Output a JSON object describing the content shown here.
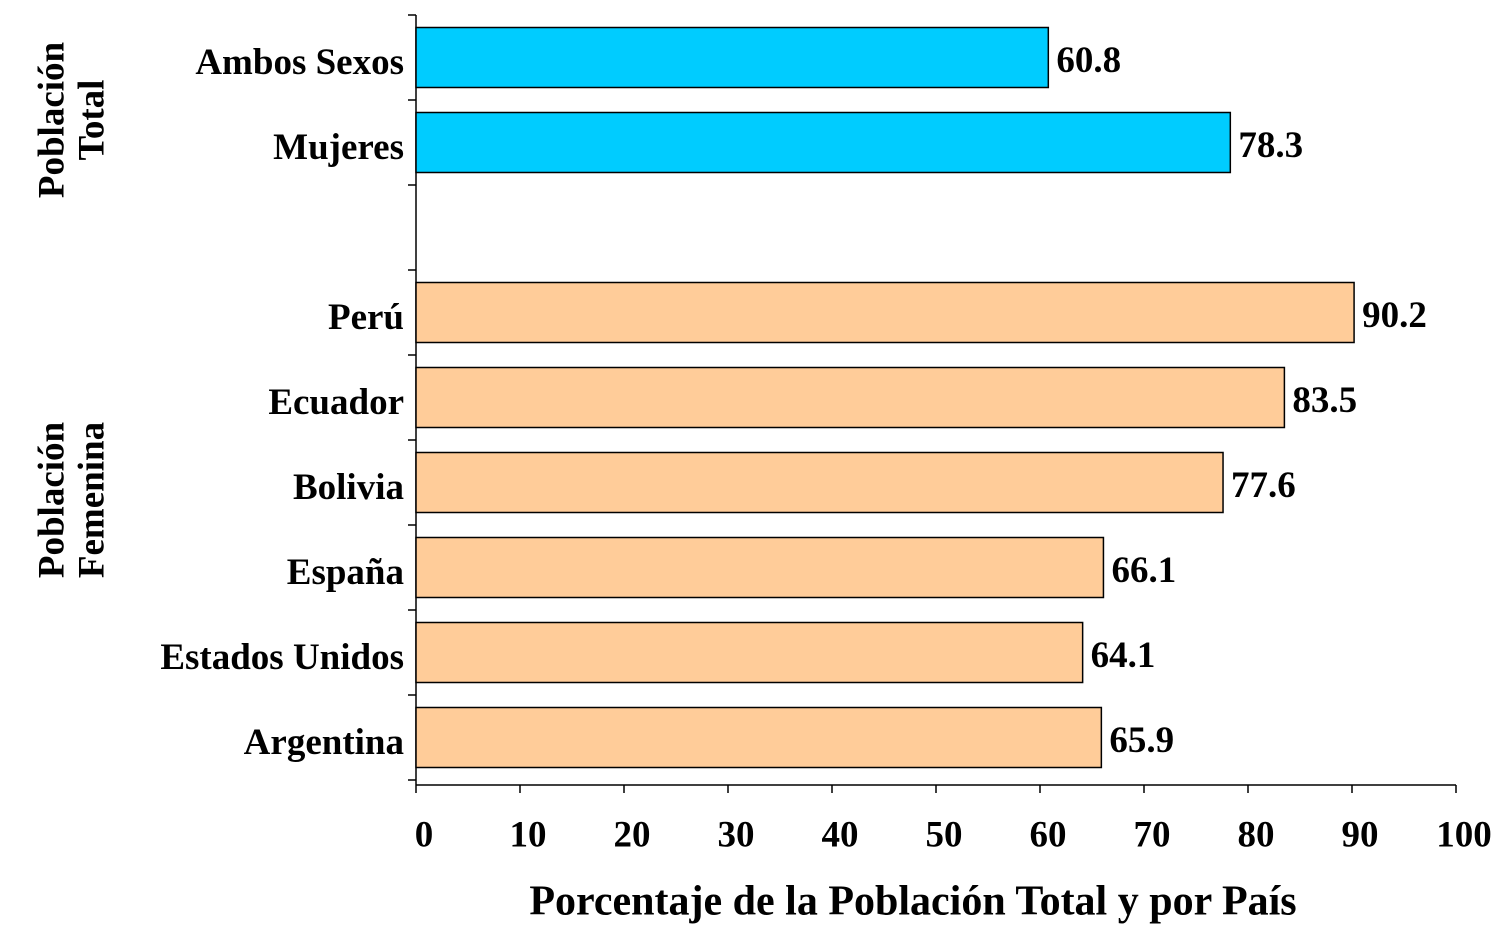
{
  "chart_data": {
    "type": "bar",
    "orientation": "horizontal",
    "categories": [
      "Ambos Sexos",
      "Mujeres",
      null,
      "Perú",
      "Ecuador",
      "Bolivia",
      "España",
      "Estados Unidos",
      "Argentina"
    ],
    "values": [
      60.8,
      78.3,
      null,
      90.2,
      83.5,
      77.6,
      66.1,
      64.1,
      65.9
    ],
    "colors": [
      "#00ccff",
      "#00ccff",
      null,
      "#ffcc99",
      "#ffcc99",
      "#ffcc99",
      "#ffcc99",
      "#ffcc99",
      "#ffcc99"
    ],
    "group_labels": [
      [
        "Población",
        "Total"
      ],
      [
        "Población",
        "Femenina"
      ]
    ],
    "x_label": "Porcentaje de la Población Total y por País",
    "xlim": [
      0,
      100
    ],
    "xticks": [
      0,
      10,
      20,
      30,
      40,
      50,
      60,
      70,
      80,
      90,
      100
    ],
    "grid": false
  }
}
